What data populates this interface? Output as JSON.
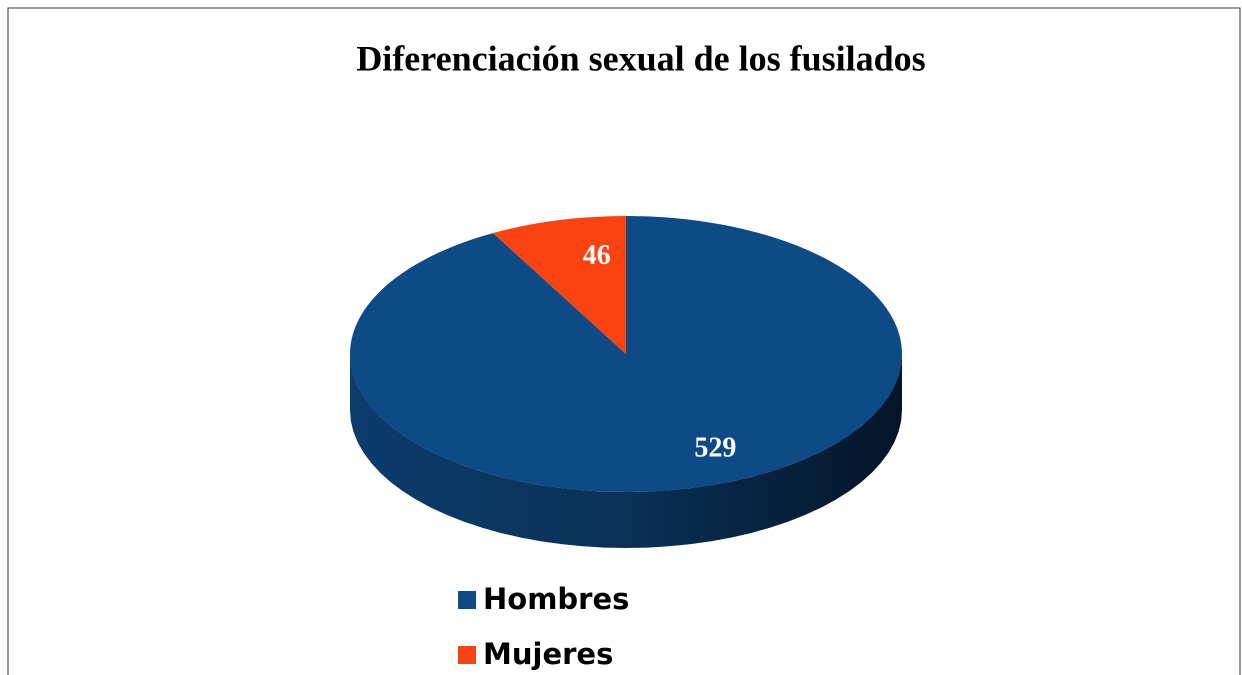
{
  "chart_data": {
    "type": "pie",
    "title": "Diferenciación sexual de los fusilados",
    "categories": [
      "Hombres",
      "Mujeres"
    ],
    "values": [
      529,
      46
    ],
    "colors": [
      "#0e4a86",
      "#fb4311"
    ],
    "legend": "bottom"
  }
}
